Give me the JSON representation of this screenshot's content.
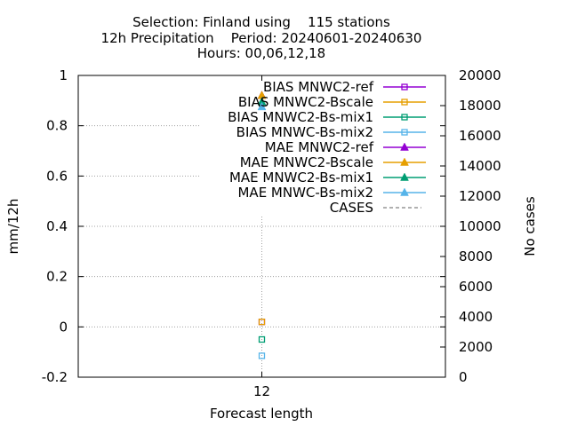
{
  "chart_data": {
    "type": "scatter",
    "title_lines": [
      "Selection: Finland using    115 stations",
      "12h Precipitation    Period: 20240601-20240630",
      "Hours: 00,06,12,18"
    ],
    "xlabel": "Forecast length",
    "ylabel": "mm/12h",
    "y2label": "No cases",
    "x_ticks": [
      "12"
    ],
    "x": [
      12
    ],
    "xlim": [
      -12,
      36
    ],
    "ylim": [
      -0.2,
      1
    ],
    "y_ticks": [
      "-0.2",
      "0",
      "0.2",
      "0.4",
      "0.6",
      "0.8",
      "1"
    ],
    "y_tick_values": [
      -0.2,
      0,
      0.2,
      0.4,
      0.6,
      0.8,
      1
    ],
    "y2lim": [
      0,
      20000
    ],
    "y2_ticks": [
      "0",
      "2000",
      "4000",
      "6000",
      "8000",
      "10000",
      "12000",
      "14000",
      "16000",
      "18000",
      "20000"
    ],
    "y2_tick_values": [
      0,
      2000,
      4000,
      6000,
      8000,
      10000,
      12000,
      14000,
      16000,
      18000,
      20000
    ],
    "grid": true,
    "legend_position": "top-right",
    "series": [
      {
        "name": "BIAS MNWC2-ref",
        "color": "#9400d3",
        "marker": "square-open",
        "values": [
          0.02
        ]
      },
      {
        "name": "BIAS MNWC2-Bscale",
        "color": "#e69f00",
        "marker": "square-open",
        "values": [
          0.02
        ]
      },
      {
        "name": "BIAS MNWC2-Bs-mix1",
        "color": "#009e73",
        "marker": "square-open",
        "values": [
          -0.05
        ]
      },
      {
        "name": "BIAS MNWC-Bs-mix2",
        "color": "#56b4e9",
        "marker": "square-open",
        "values": [
          -0.115
        ]
      },
      {
        "name": "MAE MNWC2-ref",
        "color": "#9400d3",
        "marker": "triangle",
        "values": [
          0.92
        ]
      },
      {
        "name": "MAE MNWC2-Bscale",
        "color": "#e69f00",
        "marker": "triangle",
        "values": [
          0.92
        ]
      },
      {
        "name": "MAE MNWC2-Bs-mix1",
        "color": "#009e73",
        "marker": "triangle",
        "values": [
          0.895
        ]
      },
      {
        "name": "MAE MNWC-Bs-mix2",
        "color": "#56b4e9",
        "marker": "triangle",
        "values": [
          0.875
        ]
      },
      {
        "name": "CASES",
        "color": "#808080",
        "marker": "dashed-line",
        "axis": "y2",
        "values": [
          10700
        ]
      }
    ]
  }
}
